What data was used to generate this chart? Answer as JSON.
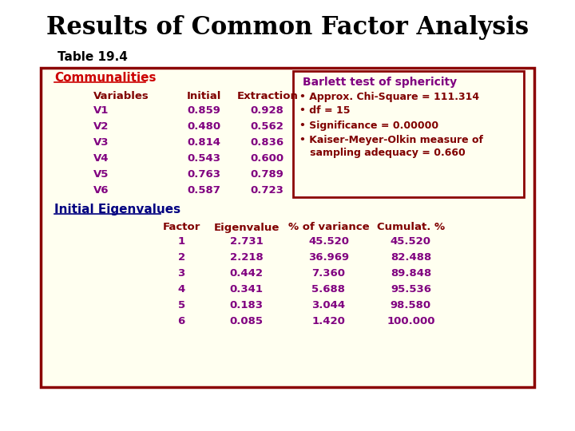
{
  "title": "Results of Common Factor Analysis",
  "subtitle": "Table 19.4",
  "bg_color": "#FFFFF0",
  "outer_border_color": "#8B0000",
  "title_color": "#000000",
  "subtitle_color": "#000000",
  "communalities_header": "Communalities",
  "communalities_color": "#CC0000",
  "col_headers": [
    "Variables",
    "Initial",
    "Extraction"
  ],
  "col_header_color": "#800000",
  "variables": [
    "V1",
    "V2",
    "V3",
    "V4",
    "V5",
    "V6"
  ],
  "initial": [
    0.859,
    0.48,
    0.814,
    0.543,
    0.763,
    0.587
  ],
  "extraction": [
    0.928,
    0.562,
    0.836,
    0.6,
    0.789,
    0.723
  ],
  "data_color": "#800080",
  "barlett_title": "Barlett test of sphericity",
  "barlett_title_color": "#800080",
  "barlett_color": "#800000",
  "barlett_bg": "#FFFFF0",
  "barlett_border": "#8B0000",
  "eigenvalues_header": "Initial Eigenvalues",
  "eigenvalues_color": "#000080",
  "eigen_col_headers": [
    "Factor",
    "Eigenvalue",
    "% of variance",
    "Cumulat. %"
  ],
  "eigen_col_color": "#800000",
  "factors": [
    1,
    2,
    3,
    4,
    5,
    6
  ],
  "eigenvalues": [
    2.731,
    2.218,
    0.442,
    0.341,
    0.183,
    0.085
  ],
  "pct_variance": [
    45.52,
    36.969,
    7.36,
    5.688,
    3.044,
    1.42
  ],
  "cumulative": [
    45.52,
    82.488,
    89.848,
    95.536,
    98.58,
    100.0
  ]
}
